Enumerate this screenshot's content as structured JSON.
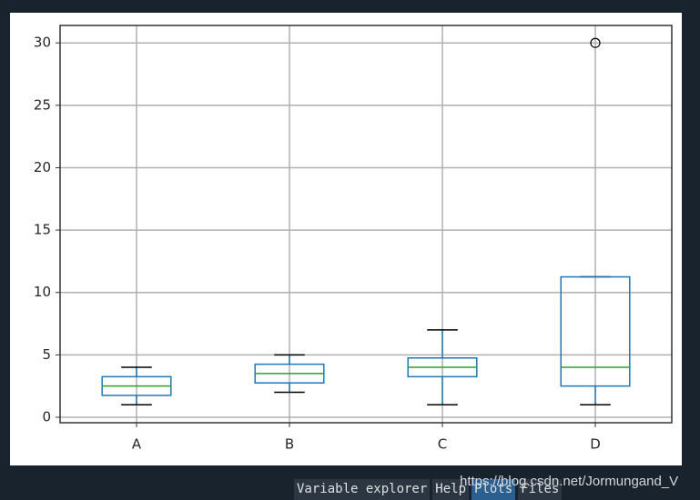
{
  "chart_data": {
    "type": "box",
    "categories": [
      "A",
      "B",
      "C",
      "D"
    ],
    "boxes": [
      {
        "whislo": 1,
        "q1": 1.75,
        "med": 2.5,
        "q3": 3.25,
        "whishi": 4,
        "fliers": []
      },
      {
        "whislo": 2,
        "q1": 2.75,
        "med": 3.5,
        "q3": 4.25,
        "whishi": 5,
        "fliers": []
      },
      {
        "whislo": 1,
        "q1": 3.25,
        "med": 4,
        "q3": 4.75,
        "whishi": 7,
        "fliers": []
      },
      {
        "whislo": 1,
        "q1": 2.5,
        "med": 4,
        "q3": 11.25,
        "whishi": 11.25,
        "fliers": [
          30
        ]
      }
    ],
    "color": "#1f77b4",
    "median_color": "#2ca02c",
    "ylim": [
      -0.44,
      31.4
    ],
    "yticks": [
      0,
      5,
      10,
      15,
      20,
      25,
      30
    ],
    "grid": true
  },
  "tabs": [
    "Variable explorer",
    "Help",
    "Plots",
    "Files"
  ],
  "active_tab": "Plots",
  "watermark": "https://blog.csdn.net/Jormungand_V"
}
